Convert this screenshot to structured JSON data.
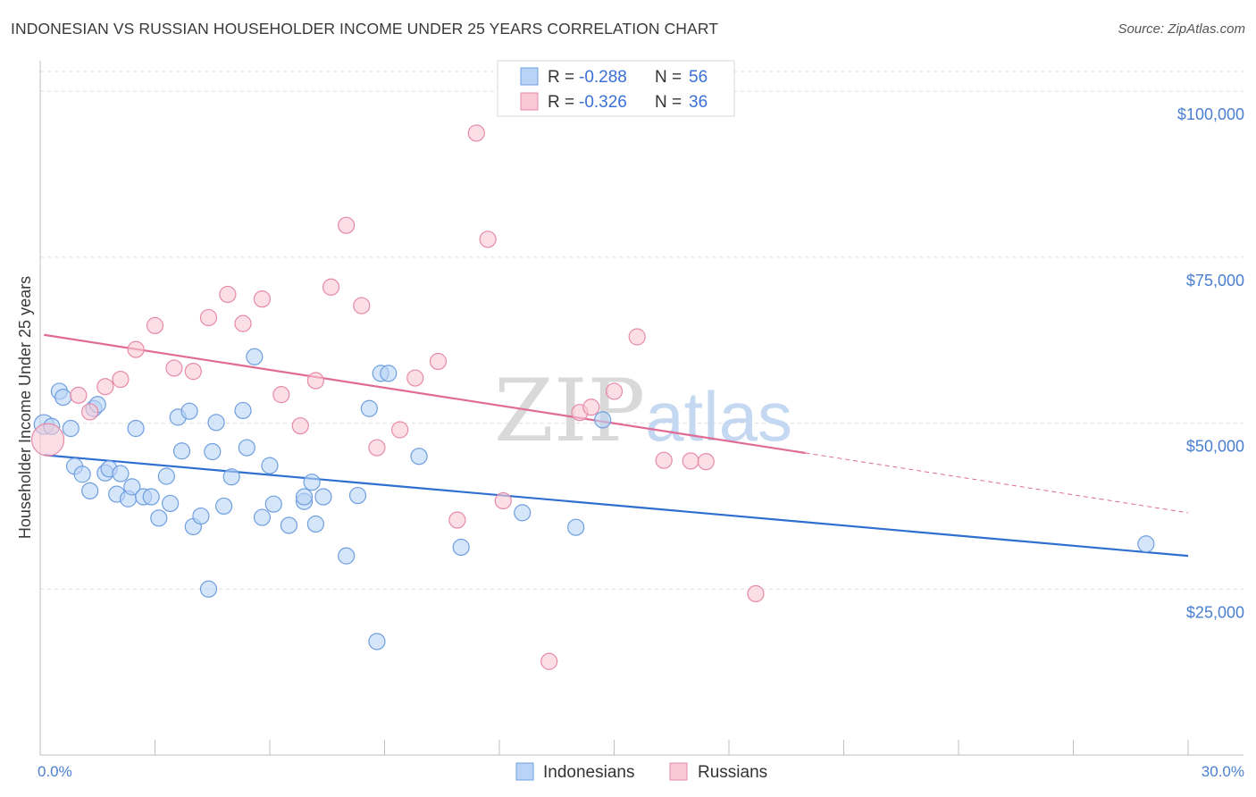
{
  "title": "INDONESIAN VS RUSSIAN HOUSEHOLDER INCOME UNDER 25 YEARS CORRELATION CHART",
  "source": "Source: ZipAtlas.com",
  "legend_top": [
    {
      "r_label": "R = ",
      "r_value": "-0.288",
      "n_label": "N = ",
      "n_value": "56",
      "fill": "#b9d3f7",
      "stroke": "#6f9fdf"
    },
    {
      "r_label": "R = ",
      "r_value": "-0.326",
      "n_label": "N = ",
      "n_value": "36",
      "fill": "#f9c8d6",
      "stroke": "#e68aa7"
    }
  ],
  "legend_bottom": [
    {
      "label": "Indonesians",
      "fill": "#b9d3f7",
      "stroke": "#6f9fdf"
    },
    {
      "label": "Russians",
      "fill": "#f9c8d6",
      "stroke": "#e68aa7"
    }
  ],
  "watermark": {
    "part1": "ZIP",
    "part2": "atlas"
  },
  "chart_data": {
    "type": "scatter",
    "xlabel": "",
    "ylabel": "Householder Income Under 25 years",
    "xlim": [
      0,
      30
    ],
    "ylim": [
      0,
      105000
    ],
    "x_tick_labels": [
      "0.0%",
      "30.0%"
    ],
    "y_ticks": [
      25000,
      50000,
      75000,
      100000
    ],
    "y_tick_labels": [
      "$25,000",
      "$50,000",
      "$75,000",
      "$100,000"
    ],
    "grid": true,
    "legend_position": "top-center",
    "series": [
      {
        "name": "Indonesians",
        "color": "#6f9fdf",
        "fill": "#b9d3f7",
        "line_color": "#2f6fd0",
        "trend": {
          "x0": 0.1,
          "y0": 45200,
          "x1": 30.0,
          "y1": 30000,
          "dashed_to": null
        },
        "points": [
          [
            0.1,
            49800
          ],
          [
            0.3,
            49500
          ],
          [
            0.5,
            54800
          ],
          [
            0.6,
            53900
          ],
          [
            0.8,
            49200
          ],
          [
            0.9,
            43500
          ],
          [
            1.1,
            42300
          ],
          [
            1.3,
            39800
          ],
          [
            1.4,
            52200
          ],
          [
            1.5,
            52800
          ],
          [
            1.7,
            42500
          ],
          [
            1.8,
            43100
          ],
          [
            2.0,
            39300
          ],
          [
            2.1,
            42400
          ],
          [
            2.3,
            38600
          ],
          [
            2.4,
            40400
          ],
          [
            2.5,
            49200
          ],
          [
            2.7,
            38900
          ],
          [
            2.9,
            38900
          ],
          [
            3.1,
            35700
          ],
          [
            3.3,
            42000
          ],
          [
            3.4,
            37900
          ],
          [
            3.6,
            50900
          ],
          [
            3.7,
            45800
          ],
          [
            3.9,
            51800
          ],
          [
            4.0,
            34400
          ],
          [
            4.2,
            36000
          ],
          [
            4.4,
            25000
          ],
          [
            4.5,
            45700
          ],
          [
            4.6,
            50100
          ],
          [
            4.8,
            37500
          ],
          [
            5.0,
            41900
          ],
          [
            5.3,
            51900
          ],
          [
            5.4,
            46300
          ],
          [
            5.6,
            60000
          ],
          [
            5.8,
            35800
          ],
          [
            6.0,
            43600
          ],
          [
            6.1,
            37800
          ],
          [
            6.5,
            34600
          ],
          [
            6.9,
            38200
          ],
          [
            6.9,
            38900
          ],
          [
            7.1,
            41100
          ],
          [
            7.2,
            34800
          ],
          [
            7.4,
            38900
          ],
          [
            8.0,
            30000
          ],
          [
            8.3,
            39100
          ],
          [
            8.6,
            52200
          ],
          [
            8.8,
            17100
          ],
          [
            8.9,
            57500
          ],
          [
            9.1,
            57500
          ],
          [
            9.9,
            45000
          ],
          [
            11.0,
            31300
          ],
          [
            12.6,
            36500
          ],
          [
            14.0,
            34300
          ],
          [
            14.7,
            50500
          ],
          [
            28.9,
            31800
          ]
        ]
      },
      {
        "name": "Russians",
        "color": "#e68aa7",
        "fill": "#f9c8d6",
        "line_color": "#e06b95",
        "trend": {
          "x0": 0.1,
          "y0": 63300,
          "x1": 20.0,
          "y1": 45500,
          "dashed_to": [
            30.0,
            36500
          ]
        },
        "points": [
          [
            0.2,
            47500
          ],
          [
            1.0,
            54200
          ],
          [
            1.3,
            51700
          ],
          [
            1.7,
            55500
          ],
          [
            2.1,
            56600
          ],
          [
            2.5,
            61100
          ],
          [
            3.0,
            64700
          ],
          [
            3.5,
            58300
          ],
          [
            4.0,
            57800
          ],
          [
            4.4,
            65900
          ],
          [
            4.9,
            69400
          ],
          [
            5.3,
            65000
          ],
          [
            5.8,
            68700
          ],
          [
            6.3,
            54300
          ],
          [
            6.8,
            49600
          ],
          [
            7.2,
            56400
          ],
          [
            7.6,
            70500
          ],
          [
            8.0,
            79800
          ],
          [
            8.4,
            67700
          ],
          [
            8.8,
            46300
          ],
          [
            9.4,
            49000
          ],
          [
            9.8,
            56800
          ],
          [
            10.4,
            59300
          ],
          [
            10.9,
            35400
          ],
          [
            11.4,
            93700
          ],
          [
            11.7,
            77700
          ],
          [
            12.1,
            38300
          ],
          [
            13.3,
            14100
          ],
          [
            14.1,
            51600
          ],
          [
            14.4,
            52400
          ],
          [
            15.0,
            54800
          ],
          [
            15.6,
            63000
          ],
          [
            16.3,
            44400
          ],
          [
            17.0,
            44300
          ],
          [
            17.4,
            44200
          ],
          [
            18.7,
            24300
          ]
        ]
      }
    ]
  }
}
